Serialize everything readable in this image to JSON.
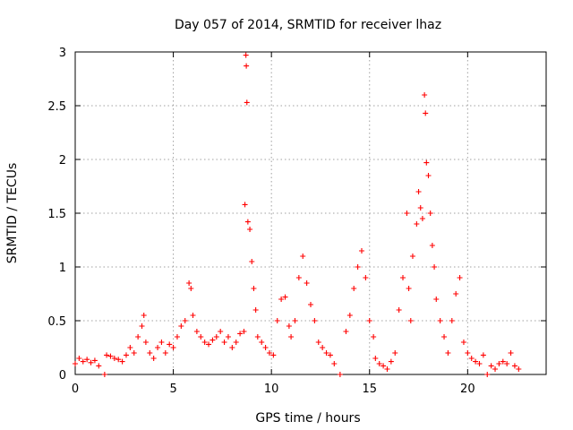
{
  "chart_data": {
    "type": "scatter",
    "title": "Day 057 of 2014, SRMTID for receiver lhaz",
    "xlabel": "GPS time / hours",
    "ylabel": "SRMTID / TECUs",
    "xlim": [
      0,
      24
    ],
    "ylim": [
      0,
      3
    ],
    "xticks": [
      0,
      5,
      10,
      15,
      20
    ],
    "yticks": [
      0,
      0.5,
      1,
      1.5,
      2,
      2.5,
      3
    ],
    "xtick_labels": [
      "0",
      "5",
      "10",
      "15",
      "20"
    ],
    "ytick_labels": [
      "0",
      "0.5",
      "1",
      "1.5",
      "2",
      "2.5",
      "3"
    ],
    "grid": true,
    "marker": "+",
    "series": [
      {
        "name": "SRMTID",
        "color": "#ff0000",
        "x": [
          0.0,
          0.2,
          0.4,
          0.6,
          0.8,
          1.0,
          1.2,
          1.5,
          1.6,
          1.8,
          2.0,
          2.2,
          2.4,
          2.6,
          2.8,
          3.0,
          3.2,
          3.4,
          3.5,
          3.6,
          3.8,
          4.0,
          4.2,
          4.4,
          4.6,
          4.8,
          5.0,
          5.2,
          5.4,
          5.6,
          5.8,
          5.9,
          6.0,
          6.2,
          6.4,
          6.6,
          6.8,
          7.0,
          7.2,
          7.4,
          7.6,
          7.8,
          8.0,
          8.2,
          8.4,
          8.6,
          8.65,
          8.7,
          8.72,
          8.75,
          8.8,
          8.9,
          9.0,
          9.1,
          9.2,
          9.3,
          9.5,
          9.7,
          9.9,
          10.1,
          10.3,
          10.5,
          10.7,
          10.9,
          11.0,
          11.2,
          11.4,
          11.6,
          11.8,
          12.0,
          12.2,
          12.4,
          12.6,
          12.8,
          13.0,
          13.2,
          13.5,
          13.8,
          14.0,
          14.2,
          14.4,
          14.6,
          14.8,
          15.0,
          15.2,
          15.3,
          15.5,
          15.7,
          15.9,
          16.1,
          16.3,
          16.5,
          16.7,
          16.9,
          17.0,
          17.1,
          17.2,
          17.4,
          17.5,
          17.6,
          17.7,
          17.8,
          17.85,
          17.9,
          18.0,
          18.1,
          18.2,
          18.3,
          18.4,
          18.6,
          18.8,
          19.0,
          19.2,
          19.4,
          19.6,
          19.8,
          20.0,
          20.2,
          20.4,
          20.6,
          20.8,
          21.0,
          21.2,
          21.4,
          21.6,
          21.8,
          22.0,
          22.2,
          22.4,
          22.6
        ],
        "y": [
          0.1,
          0.15,
          0.12,
          0.14,
          0.11,
          0.13,
          0.08,
          0.0,
          0.18,
          0.17,
          0.15,
          0.14,
          0.12,
          0.18,
          0.25,
          0.2,
          0.35,
          0.45,
          0.55,
          0.3,
          0.2,
          0.15,
          0.25,
          0.3,
          0.2,
          0.28,
          0.25,
          0.35,
          0.45,
          0.5,
          0.85,
          0.8,
          0.55,
          0.4,
          0.35,
          0.3,
          0.28,
          0.32,
          0.35,
          0.4,
          0.3,
          0.35,
          0.25,
          0.3,
          0.38,
          0.4,
          1.58,
          2.97,
          2.87,
          2.53,
          1.42,
          1.35,
          1.05,
          0.8,
          0.6,
          0.35,
          0.3,
          0.25,
          0.2,
          0.18,
          0.5,
          0.7,
          0.72,
          0.45,
          0.35,
          0.5,
          0.9,
          1.1,
          0.85,
          0.65,
          0.5,
          0.3,
          0.25,
          0.2,
          0.18,
          0.1,
          0.0,
          0.4,
          0.55,
          0.8,
          1.0,
          1.15,
          0.9,
          0.5,
          0.35,
          0.15,
          0.1,
          0.08,
          0.05,
          0.12,
          0.2,
          0.6,
          0.9,
          1.5,
          0.8,
          0.5,
          1.1,
          1.4,
          1.7,
          1.55,
          1.45,
          2.6,
          2.43,
          1.97,
          1.85,
          1.5,
          1.2,
          1.0,
          0.7,
          0.5,
          0.35,
          0.2,
          0.5,
          0.75,
          0.9,
          0.3,
          0.2,
          0.15,
          0.12,
          0.1,
          0.18,
          0.0,
          0.08,
          0.05,
          0.1,
          0.12,
          0.1,
          0.2,
          0.08,
          0.05
        ]
      }
    ]
  }
}
